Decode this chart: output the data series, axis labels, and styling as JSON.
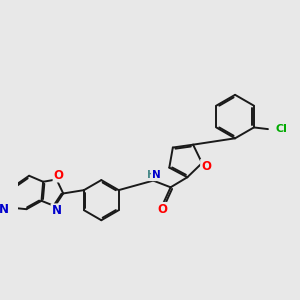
{
  "bg_color": "#e8e8e8",
  "bond_color": "#1a1a1a",
  "bond_width": 1.4,
  "atom_colors": {
    "O": "#ff0000",
    "N": "#0000cc",
    "Cl": "#00aa00",
    "H": "#4a8a8a",
    "C": "#1a1a1a"
  },
  "font_size": 8.5
}
